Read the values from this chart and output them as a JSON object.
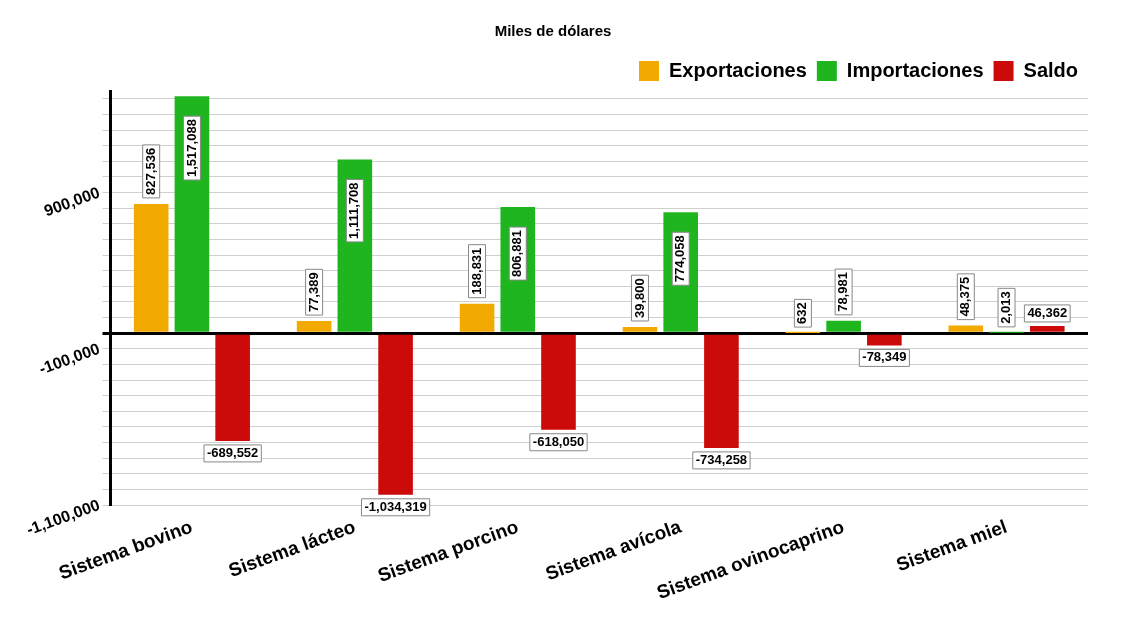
{
  "chart_data": {
    "type": "bar",
    "title": "Miles de dólares",
    "categories": [
      "Sistema bovino",
      "Sistema lácteo",
      "Sistema porcino",
      "Sistema avícola",
      "Sistema ovinocaprino",
      "Sistema miel"
    ],
    "series": [
      {
        "name": "Exportaciones",
        "color": "#f2a900",
        "values": [
          827536,
          77389,
          188831,
          39800,
          632,
          48375
        ],
        "value_labels": [
          "827,536",
          "77,389",
          "188,831",
          "39,800",
          "632",
          "48,375"
        ]
      },
      {
        "name": "Importaciones",
        "color": "#1fb51f",
        "values": [
          1517088,
          1111708,
          806881,
          774058,
          78981,
          2013
        ],
        "value_labels": [
          "1,517,088",
          "1,111,708",
          "806,881",
          "774,058",
          "78,981",
          "2,013"
        ]
      },
      {
        "name": "Saldo",
        "color": "#cc0a0a",
        "values": [
          -689552,
          -1034319,
          -618050,
          -734258,
          -78349,
          46362
        ],
        "value_labels": [
          "-689,552",
          "-1,034,319",
          "-618,050",
          "-734,258",
          "-78,349",
          "46,362"
        ]
      }
    ],
    "ylim": [
      -1100000,
      1550000
    ],
    "yticks": [
      {
        "value": -1100000,
        "label": "-1,100,000"
      },
      {
        "value": -1000000,
        "label": null
      },
      {
        "value": -900000,
        "label": null
      },
      {
        "value": -800000,
        "label": null
      },
      {
        "value": -700000,
        "label": null
      },
      {
        "value": -600000,
        "label": null
      },
      {
        "value": -500000,
        "label": null
      },
      {
        "value": -400000,
        "label": null
      },
      {
        "value": -300000,
        "label": null
      },
      {
        "value": -200000,
        "label": null
      },
      {
        "value": -100000,
        "label": "-100,000"
      },
      {
        "value": 0,
        "label": null
      },
      {
        "value": 100000,
        "label": null
      },
      {
        "value": 200000,
        "label": null
      },
      {
        "value": 300000,
        "label": null
      },
      {
        "value": 400000,
        "label": null
      },
      {
        "value": 500000,
        "label": null
      },
      {
        "value": 600000,
        "label": null
      },
      {
        "value": 700000,
        "label": null
      },
      {
        "value": 800000,
        "label": null
      },
      {
        "value": 900000,
        "label": "900,000"
      },
      {
        "value": 1000000,
        "label": null
      },
      {
        "value": 1100000,
        "label": null
      },
      {
        "value": 1200000,
        "label": null
      },
      {
        "value": 1300000,
        "label": null
      },
      {
        "value": 1400000,
        "label": null
      },
      {
        "value": 1500000,
        "label": null
      }
    ],
    "grid": "y",
    "legend": "top right"
  }
}
